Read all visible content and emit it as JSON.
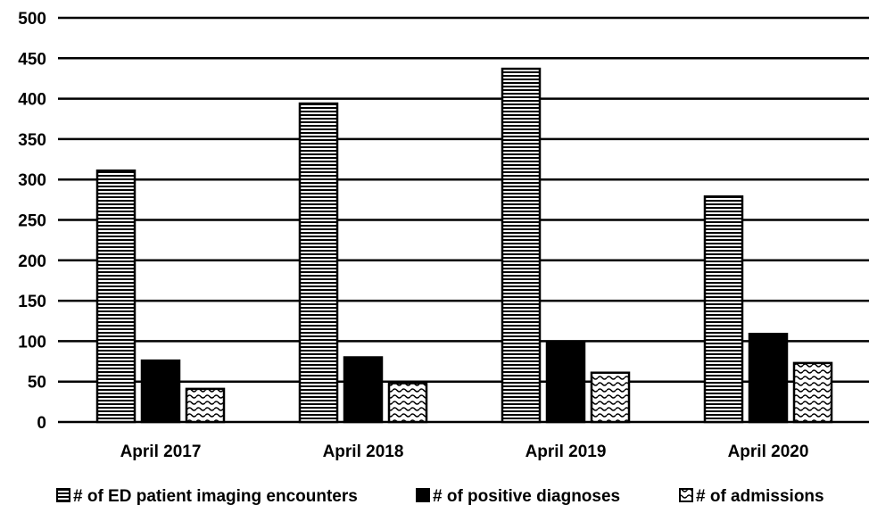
{
  "chart_data": {
    "type": "bar",
    "title": "",
    "xlabel": "",
    "ylabel": "",
    "ylim": [
      0,
      500
    ],
    "yticks": [
      0,
      50,
      100,
      150,
      200,
      250,
      300,
      350,
      400,
      450,
      500
    ],
    "grid": true,
    "legend_position": "bottom",
    "categories": [
      "April 2017",
      "April 2018",
      "April 2019",
      "April 2020"
    ],
    "series": [
      {
        "name": "# of ED patient imaging encounters",
        "values": [
          311,
          394,
          437,
          279
        ],
        "pattern": "horizontal-lines",
        "color": "#000000"
      },
      {
        "name": "# of positive diagnoses",
        "values": [
          76,
          80,
          98,
          109
        ],
        "pattern": "solid",
        "color": "#000000"
      },
      {
        "name": "# of admissions",
        "values": [
          41,
          48,
          61,
          73
        ],
        "pattern": "wavy",
        "color": "#000000"
      }
    ]
  }
}
